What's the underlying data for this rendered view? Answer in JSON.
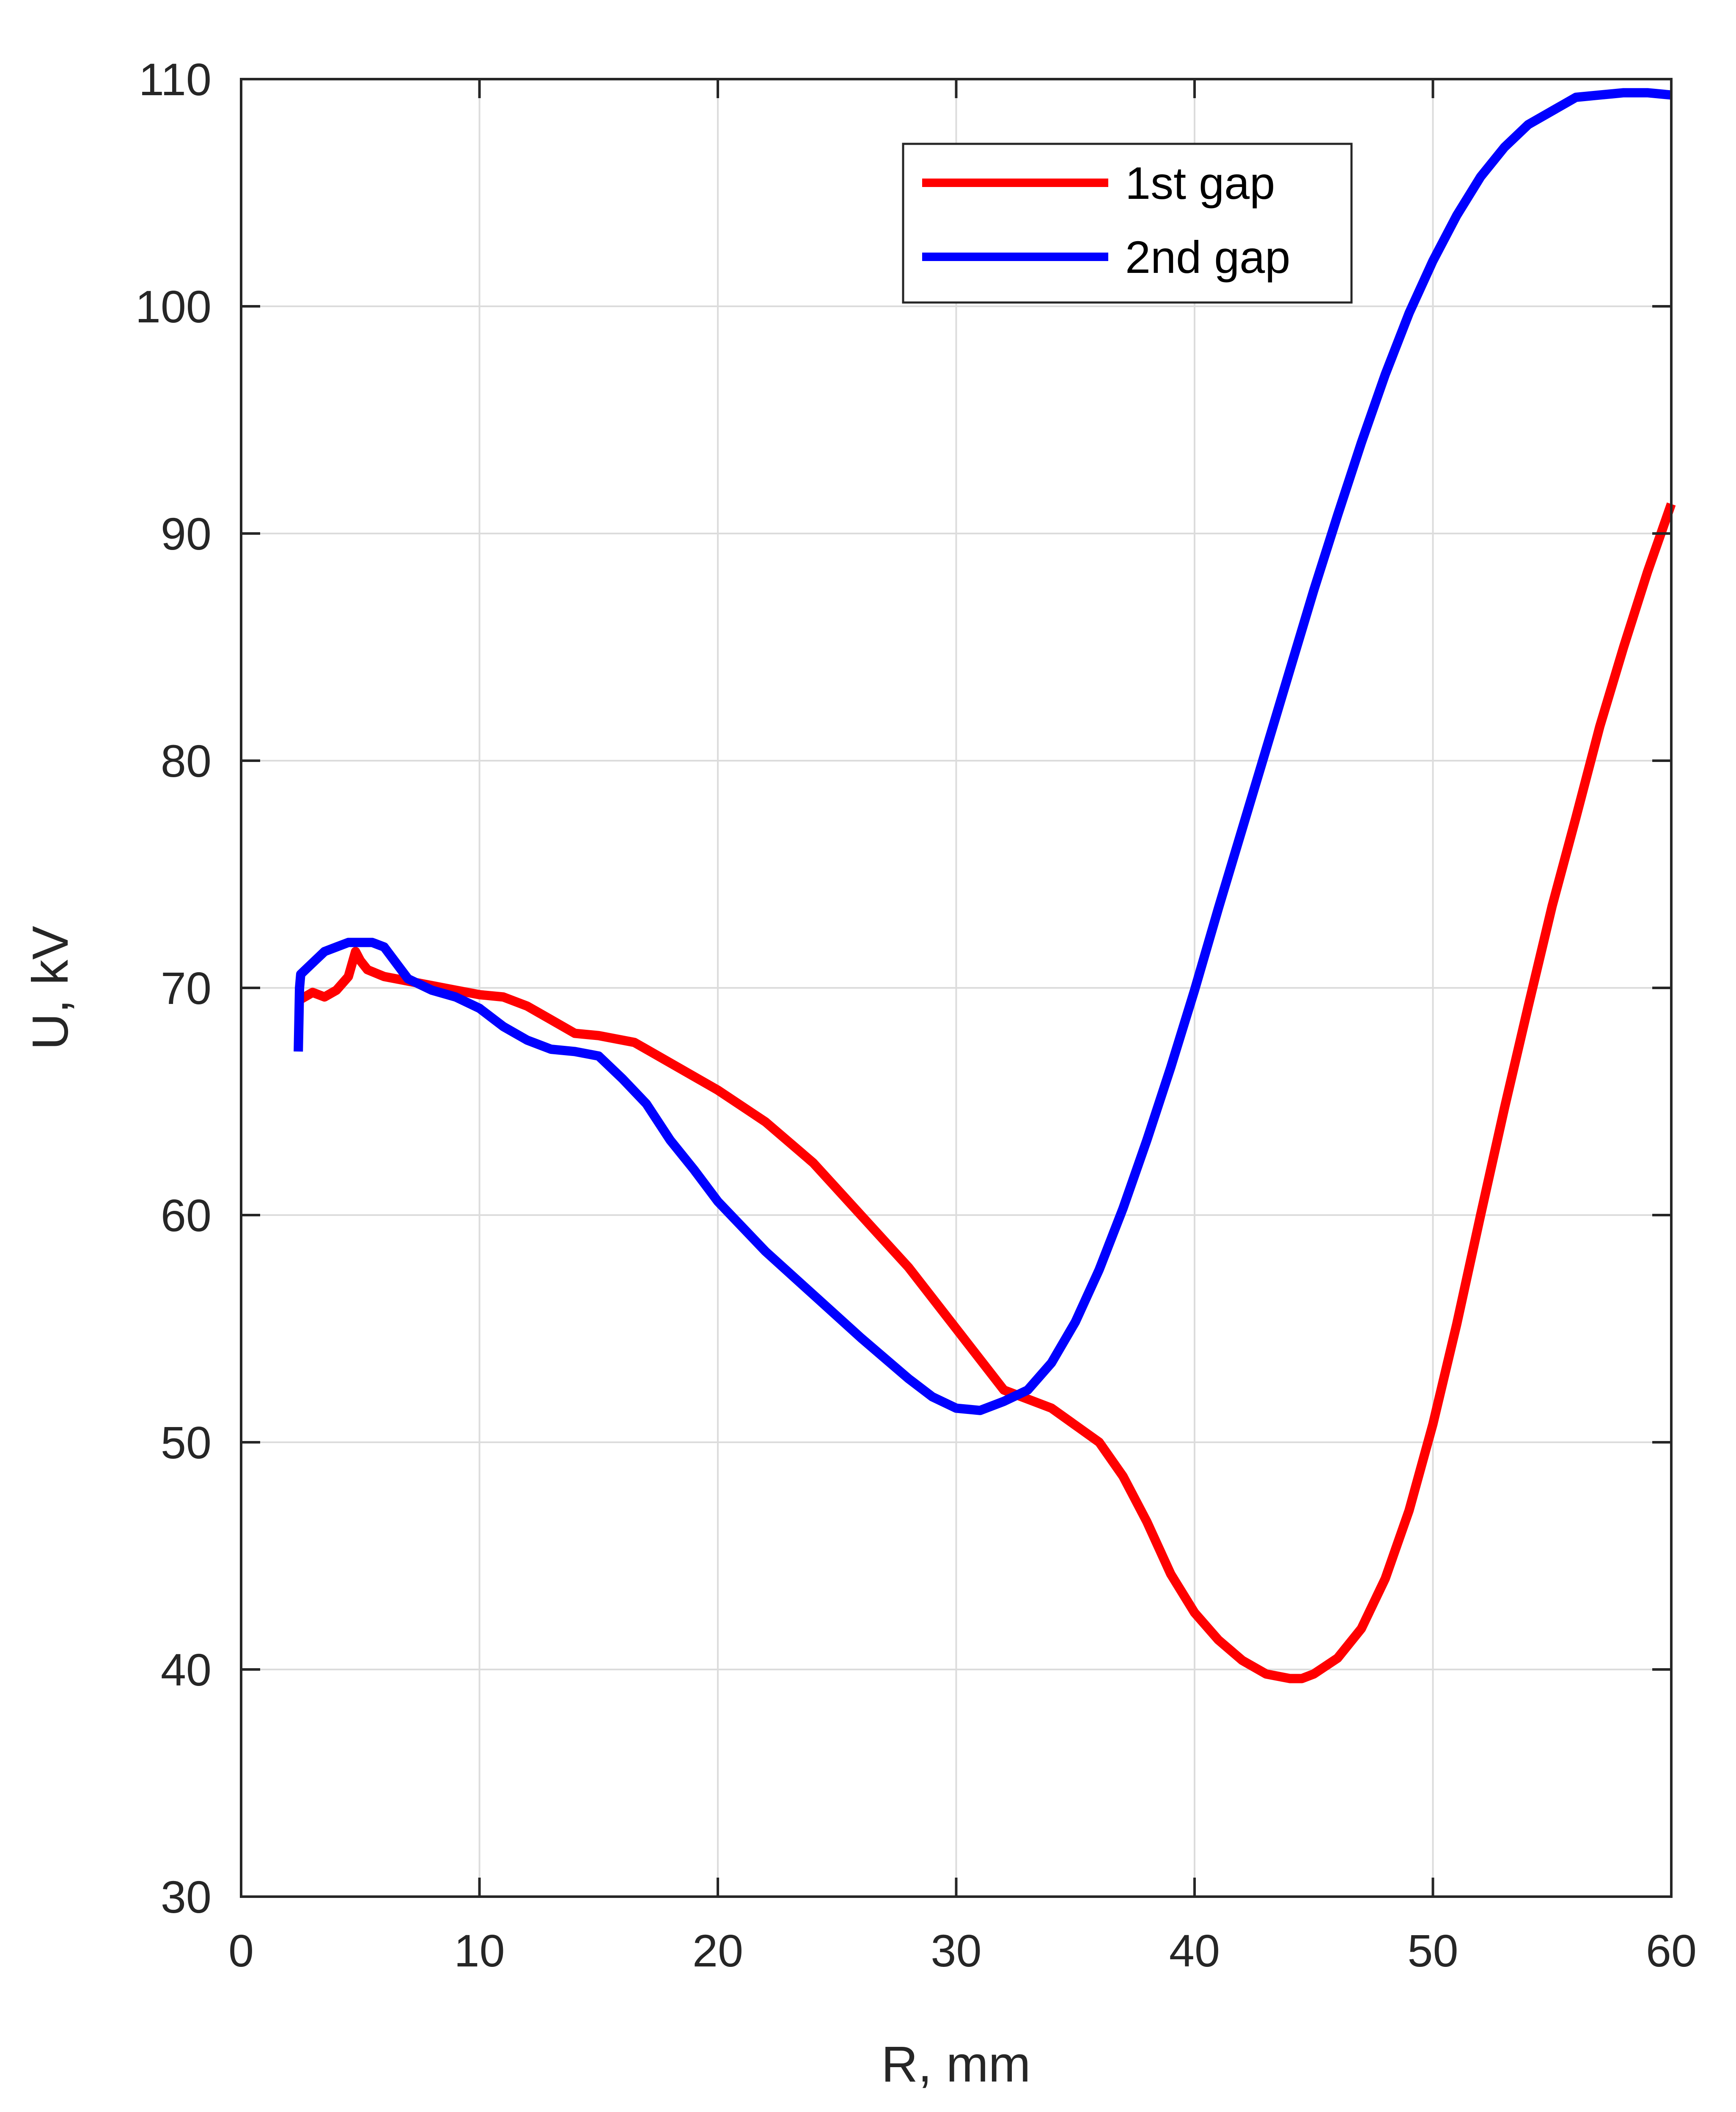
{
  "chart_data": {
    "type": "line",
    "xlabel": "R, mm",
    "ylabel": "U, kV",
    "xlim": [
      0,
      60
    ],
    "ylim": [
      30,
      110
    ],
    "xticks": [
      "0",
      "10",
      "20",
      "30",
      "40",
      "50",
      "60"
    ],
    "yticks": [
      "30",
      "40",
      "50",
      "60",
      "70",
      "80",
      "90",
      "100",
      "110"
    ],
    "grid": true,
    "legend_position": "top-right",
    "series": [
      {
        "name": "1st gap",
        "color": "#ff0000",
        "x": [
          2.5,
          3,
          3.5,
          4,
          4.5,
          4.8,
          5,
          5.3,
          6,
          7,
          8,
          9,
          10,
          11,
          12,
          13,
          14,
          15,
          16.5,
          18,
          20,
          22,
          24,
          26,
          28,
          30,
          32,
          34,
          36,
          37,
          38,
          39,
          40,
          41,
          42,
          43,
          44,
          44.5,
          45,
          46,
          47,
          48,
          49,
          50,
          51,
          52,
          53,
          54,
          55,
          56,
          57,
          58,
          59,
          60
        ],
        "y": [
          69.5,
          69.8,
          69.6,
          69.9,
          70.5,
          71.6,
          71.2,
          70.8,
          70.5,
          70.3,
          70.1,
          69.9,
          69.7,
          69.6,
          69.2,
          68.6,
          68.0,
          67.9,
          67.6,
          66.7,
          65.5,
          64.1,
          62.3,
          60.0,
          57.7,
          55.0,
          52.3,
          51.5,
          50.0,
          48.5,
          46.5,
          44.2,
          42.5,
          41.3,
          40.4,
          39.8,
          39.6,
          39.6,
          39.8,
          40.5,
          41.8,
          44.0,
          47.0,
          50.8,
          55.2,
          60.0,
          64.7,
          69.2,
          73.6,
          77.5,
          81.5,
          85.0,
          88.3,
          91.3
        ]
      },
      {
        "name": "2nd gap",
        "color": "#0000ff",
        "x": [
          2.4,
          2.45,
          2.5,
          2.6,
          3,
          3.5,
          4,
          4.5,
          5,
          5.5,
          6,
          7,
          8,
          9,
          10,
          11,
          12,
          13,
          14,
          15,
          16,
          17,
          18,
          19,
          20,
          22,
          24,
          26,
          28,
          29,
          30,
          31,
          32,
          33,
          34,
          35,
          36,
          37,
          38,
          39,
          40,
          41,
          42,
          43,
          44,
          45,
          46,
          47,
          48,
          49,
          50,
          51,
          52,
          53,
          54,
          55,
          56,
          57,
          58,
          59,
          60
        ],
        "y": [
          67.2,
          70.0,
          70.6,
          70.7,
          71.1,
          71.6,
          71.8,
          72.0,
          72.0,
          72.0,
          71.8,
          70.4,
          69.9,
          69.6,
          69.1,
          68.3,
          67.7,
          67.3,
          67.2,
          67.0,
          66.0,
          64.9,
          63.3,
          62.0,
          60.6,
          58.4,
          56.5,
          54.6,
          52.8,
          52.0,
          51.5,
          51.4,
          51.8,
          52.3,
          53.5,
          55.3,
          57.6,
          60.3,
          63.3,
          66.5,
          69.9,
          73.5,
          77.0,
          80.5,
          84.0,
          87.5,
          90.8,
          94.0,
          97.0,
          99.7,
          102.0,
          104.0,
          105.7,
          107.0,
          108.0,
          108.6,
          109.2,
          109.3,
          109.4,
          109.4,
          109.3
        ]
      }
    ]
  }
}
